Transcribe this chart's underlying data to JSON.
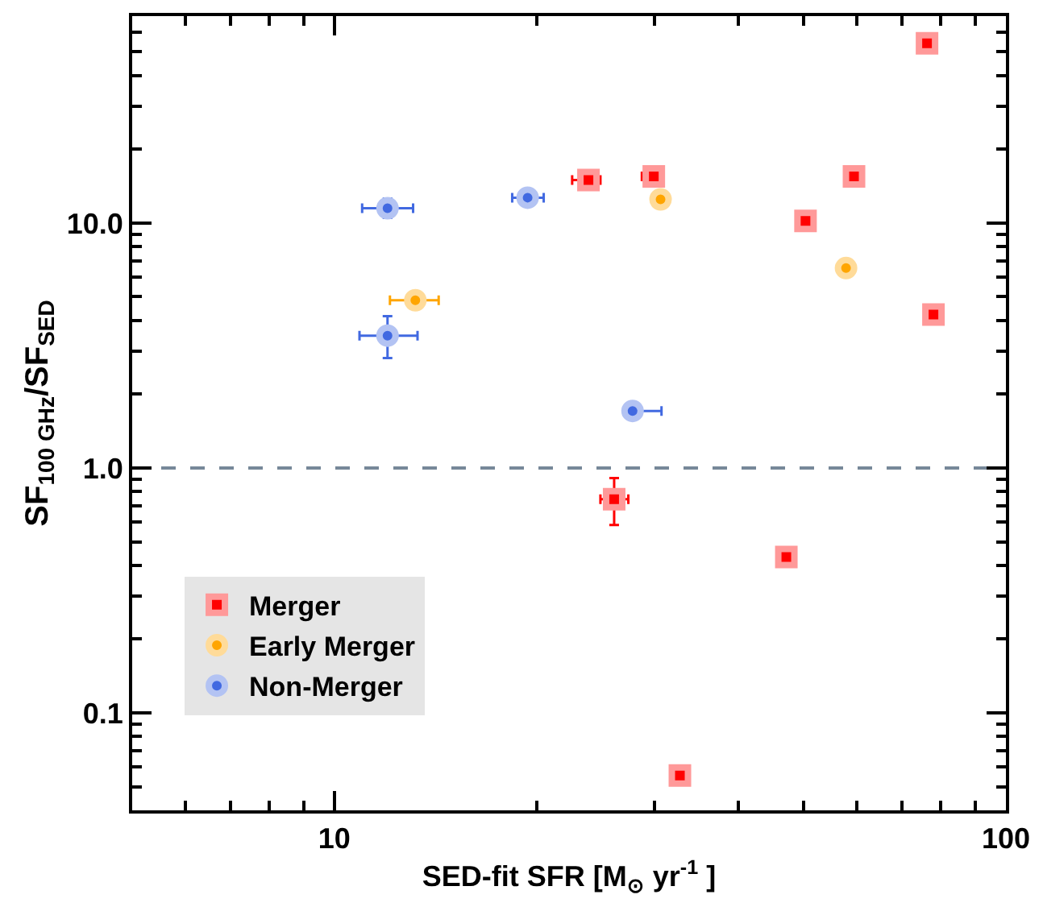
{
  "chart_data": {
    "type": "scatter",
    "xlabel": "SED-fit SFR [M$_{⊙}$ yr$^{-1}$ ]",
    "ylabel": "SF$_{100 GHz}$/SF$_{SED}$",
    "log": "xy",
    "xlim": [
      5,
      100
    ],
    "ylim": [
      0.04,
      70
    ],
    "xticks": [
      10,
      100
    ],
    "yticks": [
      {
        "value": 0.1,
        "label": "0.1"
      },
      {
        "value": 1,
        "label": "1.0"
      },
      {
        "value": 10,
        "label": "10.0"
      }
    ],
    "grid": false,
    "legend": "bottom left",
    "ref_lines": [
      {
        "axis": "y",
        "value": 1,
        "color": "#778899",
        "line_style": "dashed"
      }
    ],
    "series": [
      {
        "name": "Merger",
        "color": "#ff0000",
        "marker": "square",
        "x": [
          23.9,
          29.9,
          59.4,
          50.3,
          78,
          76.3,
          26.1,
          47.1,
          32.7
        ],
        "values": [
          15.0,
          15.5,
          15.5,
          10.2,
          4.23,
          54.2,
          0.745,
          0.433,
          0.0555
        ],
        "xerrors": [
          [
            22.6,
            24.9
          ],
          [
            28.7,
            30.9
          ],
          null,
          null,
          null,
          null,
          [
            24.9,
            27.4
          ],
          null,
          null
        ],
        "errors": [
          null,
          null,
          null,
          null,
          null,
          null,
          [
            0.585,
            0.91
          ],
          null,
          null
        ]
      },
      {
        "name": "Early Merger",
        "color": "#ffa500",
        "marker": "circle",
        "x": [
          30.6,
          57.8,
          13.2
        ],
        "values": [
          12.5,
          6.55,
          4.84
        ],
        "xerrors": [
          null,
          null,
          [
            12.1,
            14.3
          ]
        ],
        "errors": [
          null,
          null,
          null
        ]
      },
      {
        "name": "Non-Merger",
        "color": "#4169e1",
        "marker": "circle",
        "x": [
          12.0,
          19.4,
          12.0,
          27.8
        ],
        "values": [
          11.5,
          12.7,
          3.47,
          1.71
        ],
        "xerrors": [
          [
            11.0,
            13.1
          ],
          [
            18.4,
            20.5
          ],
          [
            10.9,
            13.3
          ],
          [
            27.0,
            30.7
          ]
        ],
        "errors": [
          [
            10.5,
            12.6
          ],
          null,
          [
            2.81,
            4.17
          ],
          [
            1.58,
            1.84
          ]
        ]
      }
    ]
  }
}
